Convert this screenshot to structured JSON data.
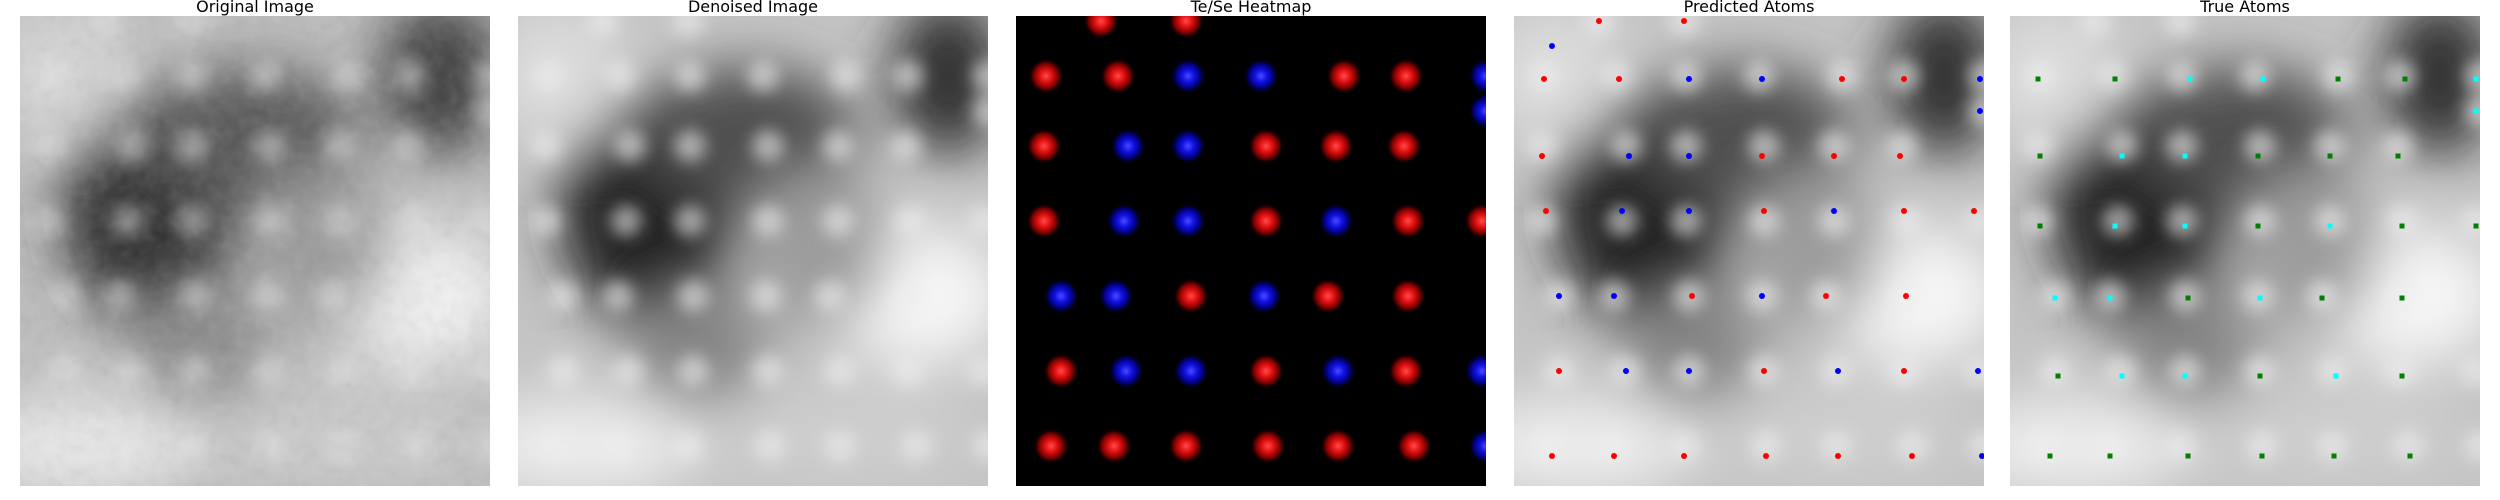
{
  "panels": [
    {
      "title": "Original Image"
    },
    {
      "title": "Denoised Image"
    },
    {
      "title": "Te/Se Heatmap"
    },
    {
      "title": "Predicted Atoms"
    },
    {
      "title": "True Atoms"
    }
  ],
  "colors": {
    "te": "#ff0000",
    "se": "#0000ff",
    "true_te": "#008000",
    "true_se": "#00ffff",
    "heatmap_background": "#000000"
  }
}
